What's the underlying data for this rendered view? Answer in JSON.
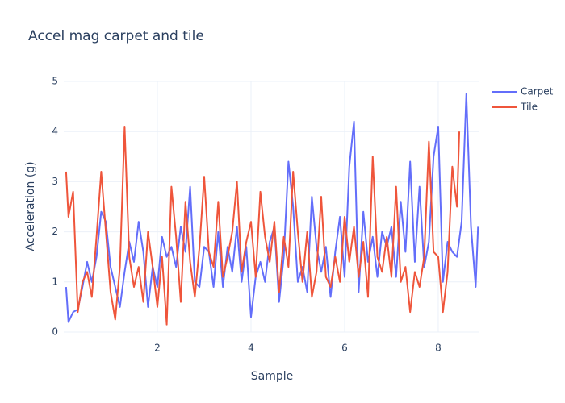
{
  "chart_data": {
    "type": "line",
    "title": "Accel mag carpet and tile",
    "xlabel": "Sample",
    "ylabel": "Acceleration (g)",
    "xlim": [
      0,
      8.88
    ],
    "ylim": [
      0,
      5
    ],
    "xticks": [
      2,
      4,
      6,
      8
    ],
    "yticks": [
      0,
      1,
      2,
      3,
      4,
      5
    ],
    "grid": true,
    "legend": "top-right",
    "series": [
      {
        "name": "Carpet",
        "color": "#636efa",
        "x": [
          0.05,
          0.1,
          0.2,
          0.3,
          0.4,
          0.5,
          0.6,
          0.7,
          0.8,
          0.9,
          1.0,
          1.1,
          1.2,
          1.3,
          1.4,
          1.5,
          1.6,
          1.7,
          1.8,
          1.9,
          2.0,
          2.1,
          2.2,
          2.3,
          2.4,
          2.5,
          2.6,
          2.7,
          2.8,
          2.9,
          3.0,
          3.1,
          3.2,
          3.3,
          3.4,
          3.5,
          3.6,
          3.7,
          3.8,
          3.9,
          4.0,
          4.1,
          4.2,
          4.3,
          4.4,
          4.5,
          4.6,
          4.7,
          4.8,
          4.9,
          5.0,
          5.1,
          5.2,
          5.3,
          5.4,
          5.5,
          5.6,
          5.7,
          5.8,
          5.9,
          6.0,
          6.1,
          6.2,
          6.3,
          6.4,
          6.5,
          6.6,
          6.7,
          6.8,
          6.9,
          7.0,
          7.1,
          7.2,
          7.3,
          7.4,
          7.5,
          7.6,
          7.7,
          7.8,
          7.9,
          8.0,
          8.1,
          8.2,
          8.3,
          8.4,
          8.5,
          8.6,
          8.7,
          8.8,
          8.85
        ],
        "values": [
          0.9,
          0.2,
          0.4,
          0.45,
          0.9,
          1.4,
          1.0,
          1.5,
          2.4,
          2.2,
          1.3,
          0.9,
          0.5,
          1.2,
          1.8,
          1.4,
          2.2,
          1.6,
          0.5,
          1.3,
          0.9,
          1.9,
          1.5,
          1.7,
          1.3,
          2.1,
          1.6,
          2.9,
          1.0,
          0.9,
          1.7,
          1.6,
          0.9,
          2.0,
          0.9,
          1.7,
          1.2,
          2.1,
          1.0,
          1.7,
          0.3,
          1.1,
          1.4,
          1.0,
          1.8,
          2.1,
          0.6,
          1.5,
          3.4,
          2.5,
          1.0,
          1.3,
          0.8,
          2.7,
          1.7,
          1.2,
          1.7,
          0.7,
          1.6,
          2.3,
          1.1,
          3.3,
          4.2,
          0.8,
          2.4,
          1.4,
          1.9,
          1.1,
          2.0,
          1.7,
          2.1,
          1.1,
          2.6,
          1.6,
          3.4,
          1.4,
          2.9,
          1.3,
          1.8,
          3.5,
          4.1,
          1.0,
          1.8,
          1.6,
          1.5,
          2.2,
          4.75,
          2.1,
          0.9,
          2.1
        ]
      },
      {
        "name": "Tile",
        "color": "#ef553b",
        "x": [
          0.05,
          0.1,
          0.2,
          0.3,
          0.4,
          0.5,
          0.6,
          0.7,
          0.8,
          0.9,
          1.0,
          1.1,
          1.2,
          1.3,
          1.4,
          1.5,
          1.6,
          1.7,
          1.8,
          1.9,
          2.0,
          2.1,
          2.2,
          2.3,
          2.4,
          2.5,
          2.6,
          2.7,
          2.8,
          2.9,
          3.0,
          3.1,
          3.2,
          3.3,
          3.4,
          3.5,
          3.6,
          3.7,
          3.8,
          3.9,
          4.0,
          4.1,
          4.2,
          4.3,
          4.4,
          4.5,
          4.6,
          4.7,
          4.8,
          4.9,
          5.0,
          5.1,
          5.2,
          5.3,
          5.4,
          5.5,
          5.6,
          5.7,
          5.8,
          5.9,
          6.0,
          6.1,
          6.2,
          6.3,
          6.4,
          6.5,
          6.6,
          6.7,
          6.8,
          6.9,
          7.0,
          7.1,
          7.2,
          7.3,
          7.4,
          7.5,
          7.6,
          7.7,
          7.8,
          7.9,
          8.0,
          8.1,
          8.2,
          8.3,
          8.4,
          8.45
        ],
        "values": [
          3.2,
          2.3,
          2.8,
          0.4,
          1.0,
          1.2,
          0.7,
          1.9,
          3.2,
          2.0,
          0.8,
          0.25,
          1.3,
          4.1,
          1.5,
          0.9,
          1.3,
          0.6,
          2.0,
          1.3,
          0.5,
          1.5,
          0.15,
          2.9,
          1.9,
          0.6,
          2.6,
          1.4,
          0.7,
          1.7,
          3.1,
          1.6,
          1.3,
          2.6,
          1.1,
          1.5,
          2.0,
          3.0,
          1.2,
          1.8,
          2.2,
          1.1,
          2.8,
          1.9,
          1.4,
          2.2,
          0.8,
          1.9,
          1.3,
          3.2,
          2.0,
          1.0,
          2.0,
          0.7,
          1.2,
          2.7,
          1.1,
          0.9,
          1.5,
          1.0,
          2.3,
          1.4,
          2.1,
          1.1,
          1.8,
          0.7,
          3.5,
          1.5,
          1.2,
          1.9,
          1.1,
          2.9,
          1.0,
          1.3,
          0.4,
          1.2,
          0.9,
          1.5,
          3.8,
          1.6,
          1.5,
          0.4,
          1.2,
          3.3,
          2.5,
          4.0
        ]
      }
    ]
  }
}
